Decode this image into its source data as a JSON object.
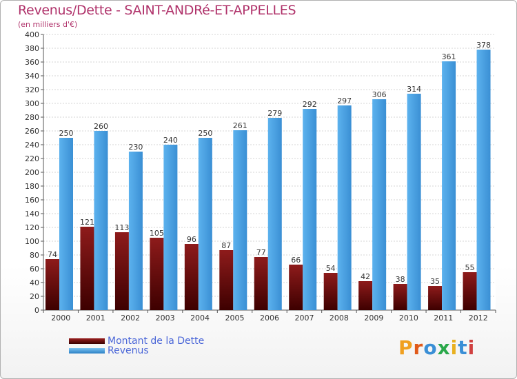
{
  "chart_data": {
    "type": "bar",
    "title": "Revenus/Dette - SAINT-ANDRé-ET-APPELLES",
    "subtitle": "(en milliers d'€)",
    "categories": [
      "2000",
      "2001",
      "2002",
      "2003",
      "2004",
      "2005",
      "2006",
      "2007",
      "2008",
      "2009",
      "2010",
      "2011",
      "2012"
    ],
    "series": [
      {
        "name": "Montant de la Dette",
        "values": [
          74,
          121,
          113,
          105,
          96,
          87,
          77,
          66,
          54,
          42,
          38,
          35,
          55
        ],
        "color": "#7a1010"
      },
      {
        "name": "Revenus",
        "values": [
          250,
          260,
          230,
          240,
          250,
          261,
          279,
          292,
          297,
          306,
          314,
          361,
          378
        ],
        "color": "#4ea6e6"
      }
    ],
    "ylim": [
      0,
      400
    ],
    "ytick_step": 20,
    "grid": true,
    "legend_position": "bottom-left"
  },
  "logo": {
    "text": "Proxiti",
    "letter_colors": [
      "#f0a020",
      "#e05a1a",
      "#3a8fd6",
      "#2aa84a",
      "#e8b020",
      "#3a8fd6",
      "#d04040"
    ]
  }
}
